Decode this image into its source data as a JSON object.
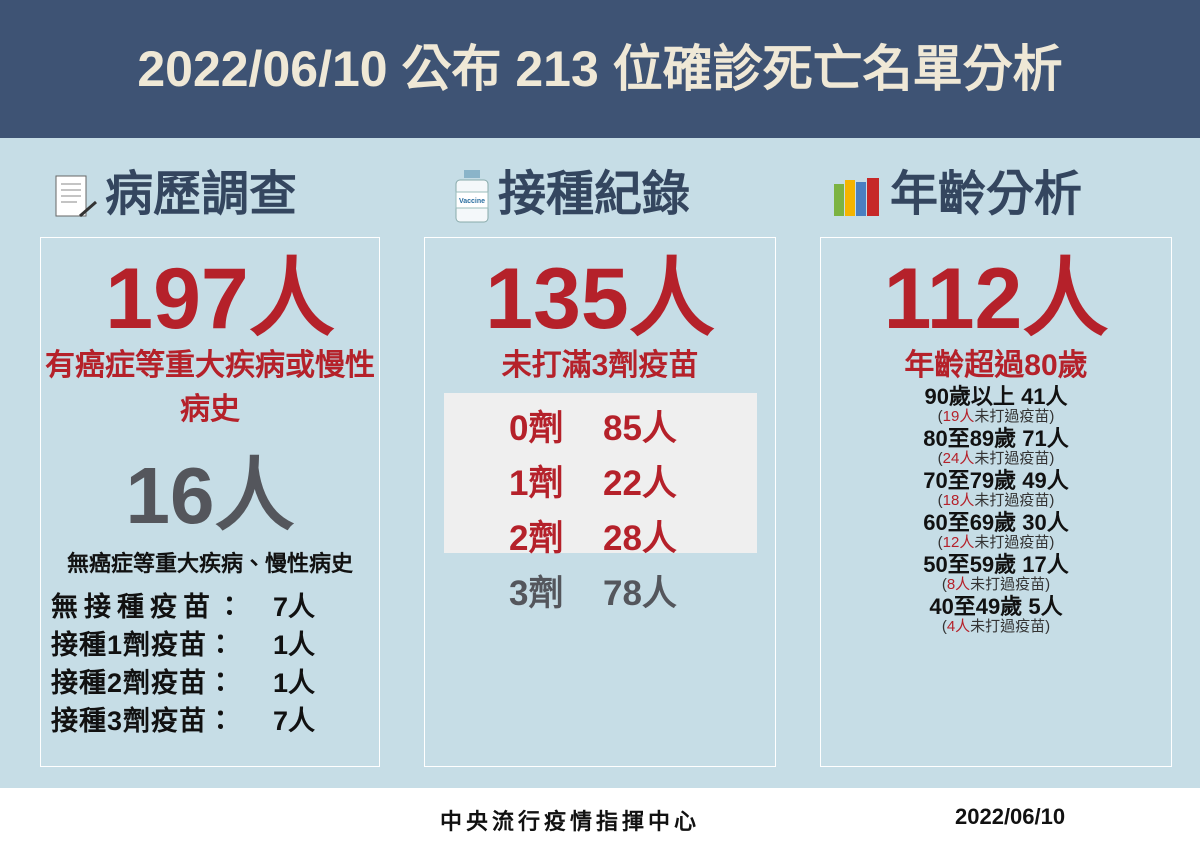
{
  "title": "2022/06/10 公布 213 位確診死亡名單分析",
  "sections": [
    {
      "heading": "病歷調查",
      "big": "197人",
      "subtitle": "有癌症等重大疾病或慢性病史",
      "big2": "16人",
      "subtitle2": "無癌症等重大疾病、慢性病史",
      "rows": [
        [
          "無接種疫苗：",
          "7人"
        ],
        [
          "接種1劑疫苗：",
          "1人"
        ],
        [
          "接種2劑疫苗：",
          "1人"
        ],
        [
          "接種3劑疫苗：",
          "7人"
        ]
      ]
    },
    {
      "heading": "接種紀錄",
      "big": "135人",
      "subtitle": "未打滿3劑疫苗",
      "rows": [
        [
          "0劑",
          "85人"
        ],
        [
          "1劑",
          "22人"
        ],
        [
          "2劑",
          "28人"
        ],
        [
          "3劑",
          "78人"
        ]
      ]
    },
    {
      "heading": "年齡分析",
      "big": "112人",
      "subtitle": "年齡超過80歲",
      "rows": [
        {
          "label": "90歲以上",
          "count": "41人",
          "note": [
            "(",
            "19人",
            "未打過疫苗)"
          ]
        },
        {
          "label": "80至89歲",
          "count": "71人",
          "note": [
            "(",
            "24人",
            "未打過疫苗)"
          ]
        },
        {
          "label": "70至79歲",
          "count": "49人",
          "note": [
            "(",
            "18人",
            "未打過疫苗)"
          ]
        },
        {
          "label": "60至69歲",
          "count": "30人",
          "note": [
            "(",
            "12人",
            "未打過疫苗)"
          ]
        },
        {
          "label": "50至59歲",
          "count": "17人",
          "note": [
            "(",
            "8人",
            "未打過疫苗)"
          ]
        },
        {
          "label": "40至49歲",
          "count": "5人",
          "note": [
            "(",
            "4人",
            "未打過疫苗)"
          ]
        }
      ]
    }
  ],
  "footer": {
    "org": "中央流行疫情指揮中心",
    "date": "2022/06/10"
  }
}
